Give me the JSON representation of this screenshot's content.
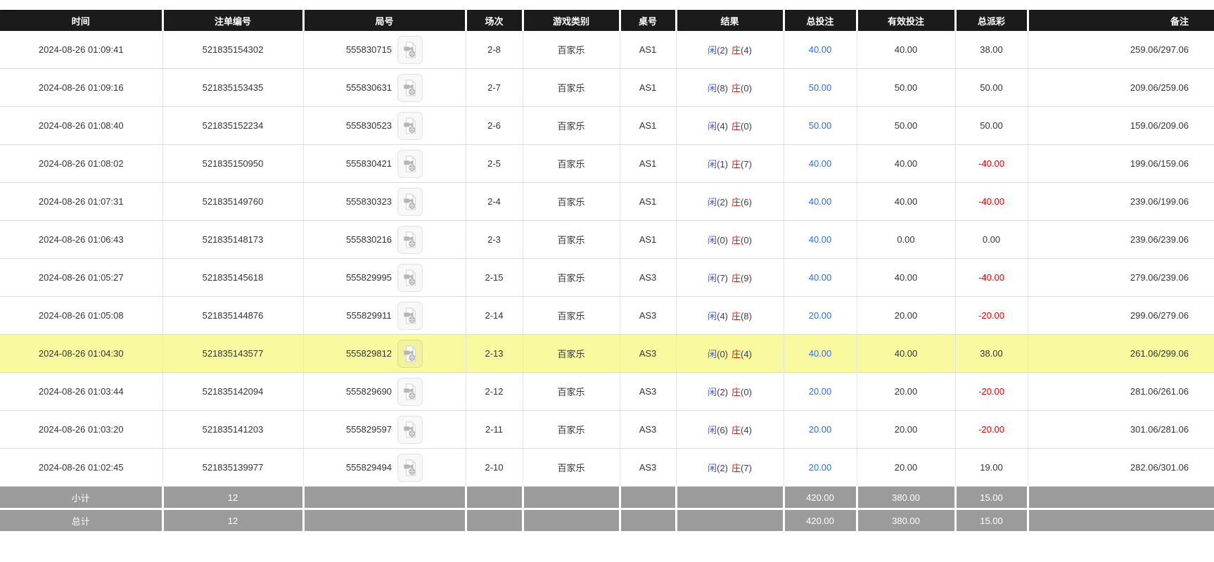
{
  "colors": {
    "header_bg": "#1b1b1b",
    "text": "#333333",
    "player_blue": "#3d55ee",
    "banker_red": "#e8140c",
    "bet_link_blue": "#2e6fe0",
    "negative_red": "#ee0000",
    "highlight_yellow": "#f9f9a0",
    "summary_gray": "#9b9b9b"
  },
  "icons": {
    "video_replay": "video-camera-icon"
  },
  "table": {
    "columns": [
      {
        "id": "time",
        "label": "时间"
      },
      {
        "id": "bet_id",
        "label": "注单编号"
      },
      {
        "id": "round_id",
        "label": "局号"
      },
      {
        "id": "session",
        "label": "场次"
      },
      {
        "id": "game_type",
        "label": "游戏类别"
      },
      {
        "id": "table_no",
        "label": "桌号"
      },
      {
        "id": "result",
        "label": "结果"
      },
      {
        "id": "total_bet",
        "label": "总投注"
      },
      {
        "id": "valid_bet",
        "label": "有效投注"
      },
      {
        "id": "payout",
        "label": "总派彩"
      },
      {
        "id": "remark",
        "label": "备注"
      }
    ],
    "result_labels": {
      "player": "闲",
      "banker": "庄"
    },
    "rows": [
      {
        "time": "2024-08-26 01:09:41",
        "bet_id": "521835154302",
        "round_id": "555830715",
        "session": "2-8",
        "game_type": "百家乐",
        "table_no": "AS1",
        "result": {
          "player": "(2)",
          "banker": "(4)"
        },
        "total_bet": "40.00",
        "valid_bet": "40.00",
        "payout": "38.00",
        "remark": "259.06/297.06",
        "highlighted": false
      },
      {
        "time": "2024-08-26 01:09:16",
        "bet_id": "521835153435",
        "round_id": "555830631",
        "session": "2-7",
        "game_type": "百家乐",
        "table_no": "AS1",
        "result": {
          "player": "(8)",
          "banker": "(0)"
        },
        "total_bet": "50.00",
        "valid_bet": "50.00",
        "payout": "50.00",
        "remark": "209.06/259.06",
        "highlighted": false
      },
      {
        "time": "2024-08-26 01:08:40",
        "bet_id": "521835152234",
        "round_id": "555830523",
        "session": "2-6",
        "game_type": "百家乐",
        "table_no": "AS1",
        "result": {
          "player": "(4)",
          "banker": "(0)"
        },
        "total_bet": "50.00",
        "valid_bet": "50.00",
        "payout": "50.00",
        "remark": "159.06/209.06",
        "highlighted": false
      },
      {
        "time": "2024-08-26 01:08:02",
        "bet_id": "521835150950",
        "round_id": "555830421",
        "session": "2-5",
        "game_type": "百家乐",
        "table_no": "AS1",
        "result": {
          "player": "(1)",
          "banker": "(7)"
        },
        "total_bet": "40.00",
        "valid_bet": "40.00",
        "payout": "-40.00",
        "remark": "199.06/159.06",
        "highlighted": false
      },
      {
        "time": "2024-08-26 01:07:31",
        "bet_id": "521835149760",
        "round_id": "555830323",
        "session": "2-4",
        "game_type": "百家乐",
        "table_no": "AS1",
        "result": {
          "player": "(2)",
          "banker": "(6)"
        },
        "total_bet": "40.00",
        "valid_bet": "40.00",
        "payout": "-40.00",
        "remark": "239.06/199.06",
        "highlighted": false
      },
      {
        "time": "2024-08-26 01:06:43",
        "bet_id": "521835148173",
        "round_id": "555830216",
        "session": "2-3",
        "game_type": "百家乐",
        "table_no": "AS1",
        "result": {
          "player": "(0)",
          "banker": "(0)"
        },
        "total_bet": "40.00",
        "valid_bet": "0.00",
        "payout": "0.00",
        "remark": "239.06/239.06",
        "highlighted": false
      },
      {
        "time": "2024-08-26 01:05:27",
        "bet_id": "521835145618",
        "round_id": "555829995",
        "session": "2-15",
        "game_type": "百家乐",
        "table_no": "AS3",
        "result": {
          "player": "(7)",
          "banker": "(9)"
        },
        "total_bet": "40.00",
        "valid_bet": "40.00",
        "payout": "-40.00",
        "remark": "279.06/239.06",
        "highlighted": false
      },
      {
        "time": "2024-08-26 01:05:08",
        "bet_id": "521835144876",
        "round_id": "555829911",
        "session": "2-14",
        "game_type": "百家乐",
        "table_no": "AS3",
        "result": {
          "player": "(4)",
          "banker": "(8)"
        },
        "total_bet": "20.00",
        "valid_bet": "20.00",
        "payout": "-20.00",
        "remark": "299.06/279.06",
        "highlighted": false
      },
      {
        "time": "2024-08-26 01:04:30",
        "bet_id": "521835143577",
        "round_id": "555829812",
        "session": "2-13",
        "game_type": "百家乐",
        "table_no": "AS3",
        "result": {
          "player": "(0)",
          "banker": "(4)"
        },
        "total_bet": "40.00",
        "valid_bet": "40.00",
        "payout": "38.00",
        "remark": "261.06/299.06",
        "highlighted": true
      },
      {
        "time": "2024-08-26 01:03:44",
        "bet_id": "521835142094",
        "round_id": "555829690",
        "session": "2-12",
        "game_type": "百家乐",
        "table_no": "AS3",
        "result": {
          "player": "(2)",
          "banker": "(0)"
        },
        "total_bet": "20.00",
        "valid_bet": "20.00",
        "payout": "-20.00",
        "remark": "281.06/261.06",
        "highlighted": false
      },
      {
        "time": "2024-08-26 01:03:20",
        "bet_id": "521835141203",
        "round_id": "555829597",
        "session": "2-11",
        "game_type": "百家乐",
        "table_no": "AS3",
        "result": {
          "player": "(6)",
          "banker": "(4)"
        },
        "total_bet": "20.00",
        "valid_bet": "20.00",
        "payout": "-20.00",
        "remark": "301.06/281.06",
        "highlighted": false
      },
      {
        "time": "2024-08-26 01:02:45",
        "bet_id": "521835139977",
        "round_id": "555829494",
        "session": "2-10",
        "game_type": "百家乐",
        "table_no": "AS3",
        "result": {
          "player": "(2)",
          "banker": "(7)"
        },
        "total_bet": "20.00",
        "valid_bet": "20.00",
        "payout": "19.00",
        "remark": "282.06/301.06",
        "highlighted": false
      }
    ],
    "subtotal": {
      "label": "小计",
      "count": "12",
      "total_bet": "420.00",
      "valid_bet": "380.00",
      "payout": "15.00"
    },
    "grand_total": {
      "label": "总计",
      "count": "12",
      "total_bet": "420.00",
      "valid_bet": "380.00",
      "payout": "15.00"
    }
  }
}
